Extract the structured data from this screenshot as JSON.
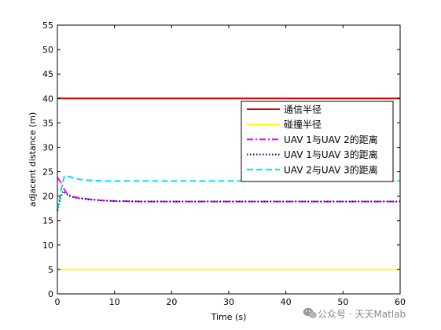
{
  "chart_data": {
    "type": "line",
    "title": "",
    "xlabel": "Time (s)",
    "ylabel": "adjacent distance (m)",
    "xlim": [
      0,
      60
    ],
    "ylim": [
      0,
      55
    ],
    "xticks": [
      0,
      10,
      20,
      30,
      40,
      50,
      60
    ],
    "yticks": [
      0,
      5,
      10,
      15,
      20,
      25,
      30,
      35,
      40,
      45,
      50,
      55
    ],
    "grid": false,
    "legend_position": "right",
    "series": [
      {
        "name": "通信半径",
        "color": "#e00000",
        "dash": "solid",
        "x": [
          0,
          60
        ],
        "y": [
          40,
          40
        ]
      },
      {
        "name": "碰撞半径",
        "color": "#ffff00",
        "dash": "solid",
        "x": [
          0,
          60
        ],
        "y": [
          5,
          5
        ]
      },
      {
        "name": "UAV 1与UAV 2的距离",
        "color": "#ff00ff",
        "dash": "dashdot",
        "x": [
          0,
          0.5,
          1,
          1.5,
          2,
          3,
          4,
          6,
          8,
          10,
          15,
          20,
          30,
          40,
          50,
          60
        ],
        "y": [
          23.8,
          23,
          21.8,
          20.8,
          20.2,
          19.8,
          19.6,
          19.3,
          19.1,
          19.0,
          18.9,
          18.9,
          18.9,
          18.9,
          18.9,
          18.9
        ]
      },
      {
        "name": "UAV 1与UAV 3的距离",
        "color": "#000080",
        "dash": "dotted",
        "x": [
          0,
          0.5,
          1,
          1.5,
          2,
          3,
          4,
          6,
          8,
          10,
          15,
          20,
          30,
          40,
          50,
          60
        ],
        "y": [
          17.0,
          19.5,
          21.0,
          20.5,
          20.1,
          19.7,
          19.5,
          19.3,
          19.1,
          19.0,
          18.9,
          18.9,
          18.9,
          18.9,
          18.9,
          18.9
        ]
      },
      {
        "name": "UAV 2与UAV 3的距离",
        "color": "#00e5ee",
        "dash": "dashed",
        "x": [
          0,
          0.4,
          0.8,
          1.2,
          1.6,
          2,
          3,
          4,
          6,
          8,
          10,
          20,
          30,
          40,
          50,
          60
        ],
        "y": [
          17.2,
          19.5,
          22.2,
          24.0,
          24.2,
          24.0,
          23.7,
          23.4,
          23.2,
          23.1,
          23.1,
          23.1,
          23.1,
          23.1,
          23.1,
          23.1
        ]
      }
    ]
  },
  "watermark": {
    "text": "公众号 · 天天Matlab",
    "icon": "wechat-icon"
  }
}
